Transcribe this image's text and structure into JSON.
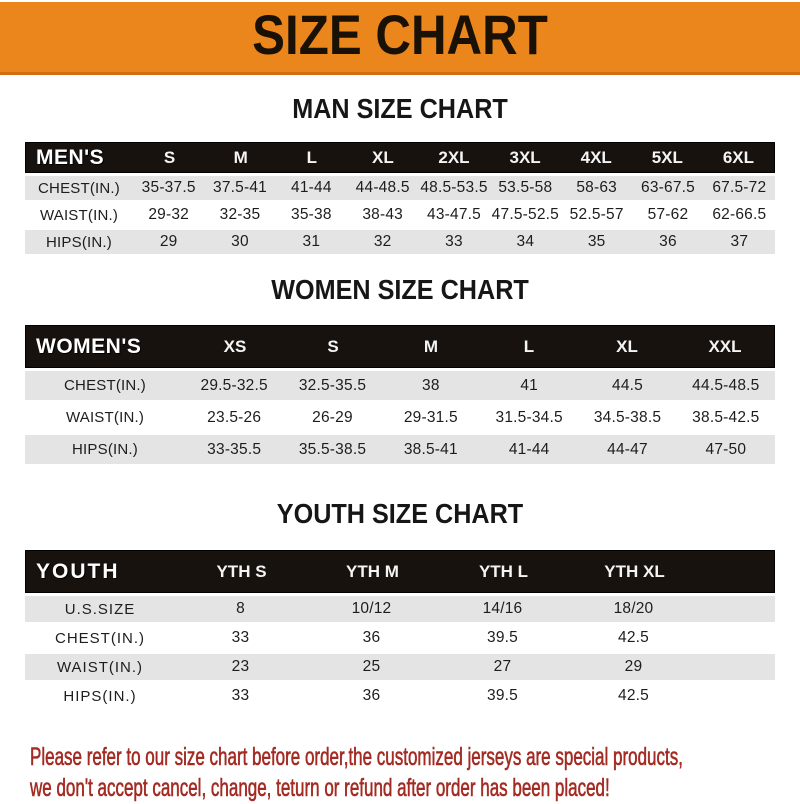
{
  "banner": {
    "title": "SIZE CHART",
    "bg_color": "#EB861D"
  },
  "sections": [
    {
      "heading": "MAN SIZE CHART",
      "table": {
        "header": {
          "label": "MEN'S",
          "columns": [
            "S",
            "M",
            "L",
            "XL",
            "2XL",
            "3XL",
            "4XL",
            "5XL",
            "6XL"
          ]
        },
        "rows": [
          {
            "label": "CHEST(IN.)",
            "values": [
              "35-37.5",
              "37.5-41",
              "41-44",
              "44-48.5",
              "48.5-53.5",
              "53.5-58",
              "58-63",
              "63-67.5",
              "67.5-72"
            ]
          },
          {
            "label": "WAIST(IN.)",
            "values": [
              "29-32",
              "32-35",
              "35-38",
              "38-43",
              "43-47.5",
              "47.5-52.5",
              "52.5-57",
              "57-62",
              "62-66.5"
            ]
          },
          {
            "label": "HIPS(IN.)",
            "values": [
              "29",
              "30",
              "31",
              "32",
              "33",
              "34",
              "35",
              "36",
              "37"
            ]
          }
        ]
      }
    },
    {
      "heading": "WOMEN SIZE CHART",
      "table": {
        "header": {
          "label": "WOMEN'S",
          "columns": [
            "XS",
            "S",
            "M",
            "L",
            "XL",
            "XXL"
          ]
        },
        "rows": [
          {
            "label": "CHEST(IN.)",
            "values": [
              "29.5-32.5",
              "32.5-35.5",
              "38",
              "41",
              "44.5",
              "44.5-48.5"
            ]
          },
          {
            "label": "WAIST(IN.)",
            "values": [
              "23.5-26",
              "26-29",
              "29-31.5",
              "31.5-34.5",
              "34.5-38.5",
              "38.5-42.5"
            ]
          },
          {
            "label": "HIPS(IN.)",
            "values": [
              "33-35.5",
              "35.5-38.5",
              "38.5-41",
              "41-44",
              "44-47",
              "47-50"
            ]
          }
        ]
      }
    },
    {
      "heading": "YOUTH SIZE CHART",
      "table": {
        "header": {
          "label": "YOUTH",
          "columns": [
            "YTH S",
            "YTH M",
            "YTH L",
            "YTH XL"
          ]
        },
        "rows": [
          {
            "label": "U.S.SIZE",
            "values": [
              "8",
              "10/12",
              "14/16",
              "18/20"
            ]
          },
          {
            "label": "CHEST(IN.)",
            "values": [
              "33",
              "36",
              "39.5",
              "42.5"
            ]
          },
          {
            "label": "WAIST(IN.)",
            "values": [
              "23",
              "25",
              "27",
              "29"
            ]
          },
          {
            "label": "HIPS(IN.)",
            "values": [
              "33",
              "36",
              "39.5",
              "42.5"
            ]
          }
        ]
      }
    }
  ],
  "footer": {
    "line1": "Please refer to our size chart before order,the customized jerseys are special products,",
    "line2": "we don't accept cancel, change, teturn or refund after order has been placed!",
    "color": "#A32B22"
  }
}
